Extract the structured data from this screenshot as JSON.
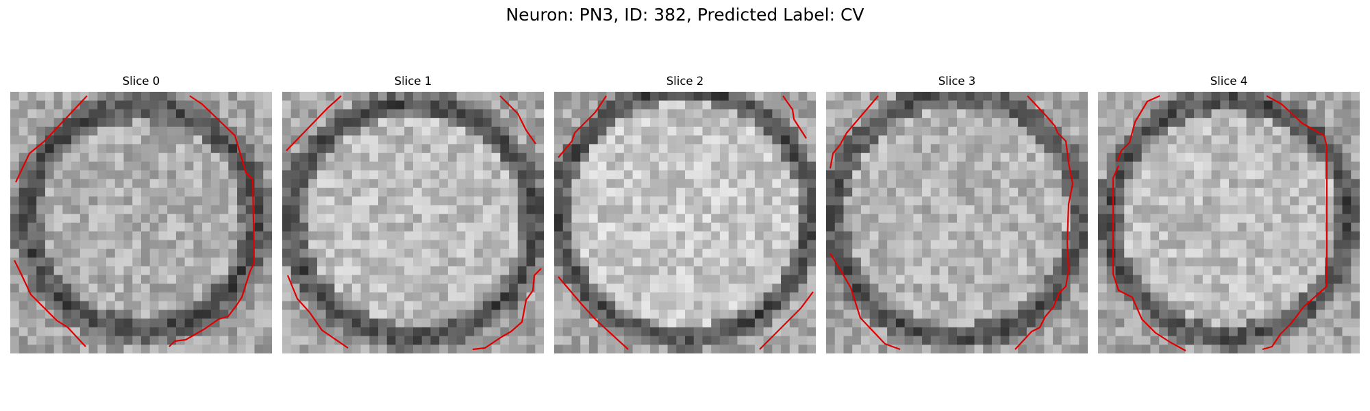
{
  "figure": {
    "title": "Neuron: PN3, ID: 382, Predicted Label: CV",
    "overlay_color": "#e00000",
    "slices": [
      {
        "label": "Slice 0"
      },
      {
        "label": "Slice 1"
      },
      {
        "label": "Slice 2"
      },
      {
        "label": "Slice 3"
      },
      {
        "label": "Slice 4"
      }
    ]
  }
}
